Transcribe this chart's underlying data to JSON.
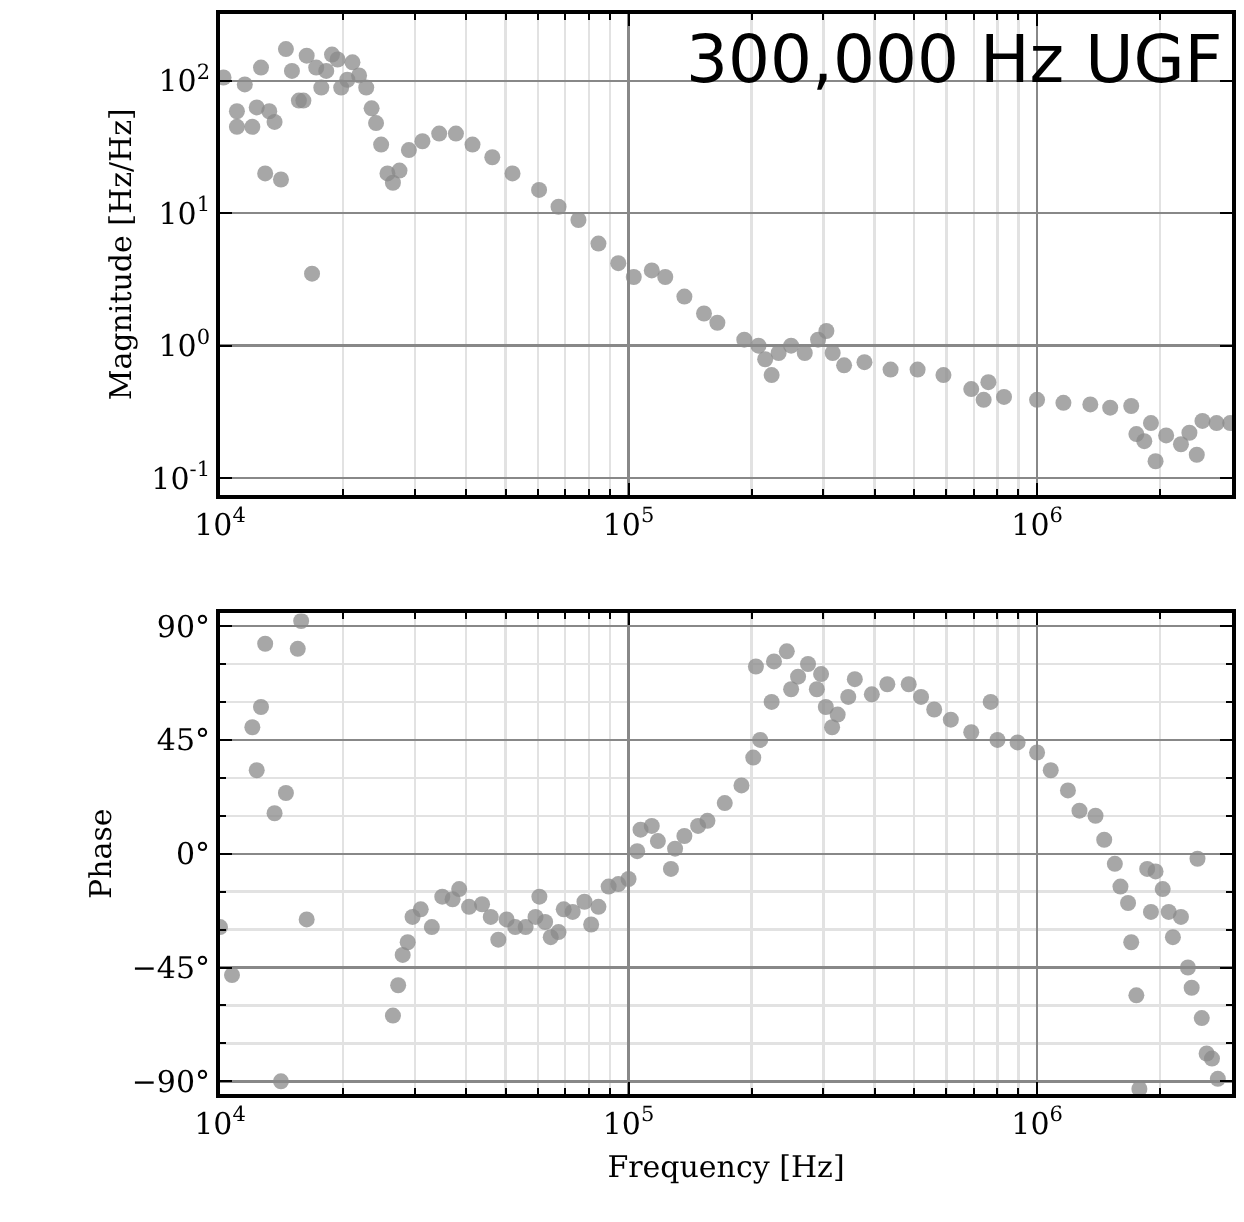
{
  "chart_data": [
    {
      "type": "scatter",
      "title": "300,000 Hz UGF",
      "ylabel": "Magnitude [Hz/Hz]",
      "log": "xy",
      "grid": true,
      "marker": "circle",
      "xlim": [
        10000,
        3000000
      ],
      "xticks": [
        {
          "value": 10000,
          "label": "10$^{4}$"
        },
        {
          "value": 100000,
          "label": "10$^{5}$"
        },
        {
          "value": 1000000,
          "label": "10$^{6}$"
        }
      ],
      "ylim": [
        0.075,
        320
      ],
      "yticks": [
        {
          "value": 0.1,
          "label": "10$^{-1}$"
        },
        {
          "value": 1,
          "label": "10$^{0}$"
        },
        {
          "value": 10,
          "label": "10$^{1}$"
        },
        {
          "value": 100,
          "label": "10$^{2}$"
        }
      ],
      "series": [
        {
          "color": "#8a8a8a",
          "x": [
            10200,
            11000,
            11000,
            11500,
            12000,
            12300,
            12600,
            12900,
            13200,
            13600,
            14100,
            14500,
            15000,
            15600,
            16000,
            16300,
            16800,
            17200,
            17700,
            18200,
            18800,
            19400,
            19800,
            20500,
            21100,
            21900,
            22800,
            23500,
            24100,
            24800,
            25700,
            26500,
            27500,
            29000,
            31300,
            34400,
            37800,
            41500,
            46400,
            52000,
            60400,
            67400,
            75400,
            84400,
            94400,
            103000,
            114000,
            123000,
            137000,
            153000,
            165000,
            192000,
            208000,
            216000,
            224000,
            233000,
            250000,
            270000,
            291000,
            305000,
            316000,
            337000,
            378000,
            438000,
            510000,
            590000,
            690000,
            740000,
            760000,
            830000,
            1000000,
            1160000,
            1350000,
            1510000,
            1700000,
            1750000,
            1830000,
            1900000,
            1950000,
            2070000,
            2250000,
            2360000,
            2460000,
            2540000,
            2750000,
            2970000
          ],
          "values": [
            106,
            59,
            45,
            94,
            45,
            63,
            126,
            20,
            59,
            49,
            18,
            174,
            119,
            71,
            71,
            155,
            3.5,
            126,
            89,
            119,
            158,
            145,
            89,
            102,
            138,
            110,
            89,
            62,
            48,
            33,
            20,
            17,
            21,
            30,
            35,
            40,
            40,
            33,
            26.5,
            20,
            15,
            11.2,
            8.9,
            5.9,
            4.2,
            3.3,
            3.7,
            3.3,
            2.35,
            1.75,
            1.49,
            1.11,
            1.0,
            0.79,
            0.6,
            0.88,
            1.0,
            0.88,
            1.11,
            1.29,
            0.88,
            0.71,
            0.75,
            0.66,
            0.66,
            0.6,
            0.47,
            0.39,
            0.53,
            0.41,
            0.39,
            0.37,
            0.36,
            0.34,
            0.35,
            0.215,
            0.19,
            0.26,
            0.134,
            0.21,
            0.18,
            0.22,
            0.15,
            0.27,
            0.26,
            0.26
          ]
        }
      ]
    },
    {
      "type": "scatter",
      "xlabel": "Frequency [Hz]",
      "ylabel": "Phase",
      "log": "x",
      "grid": true,
      "marker": "circle",
      "xlim": [
        10000,
        3000000
      ],
      "xticks": [
        {
          "value": 10000,
          "label": "10$^{4}$"
        },
        {
          "value": 100000,
          "label": "10$^{5}$"
        },
        {
          "value": 1000000,
          "label": "10$^{6}$"
        }
      ],
      "ylim": [
        -95,
        95
      ],
      "yticks": [
        {
          "value": -90,
          "label": "−90°"
        },
        {
          "value": -45,
          "label": "−45°"
        },
        {
          "value": 0,
          "label": "0°"
        },
        {
          "value": 45,
          "label": "45°"
        },
        {
          "value": 90,
          "label": "90°"
        }
      ],
      "series": [
        {
          "color": "#8a8a8a",
          "x": [
            10000,
            10700,
            12000,
            12300,
            12600,
            12900,
            13600,
            14100,
            14500,
            15500,
            15800,
            16300,
            26500,
            27300,
            28000,
            28800,
            29600,
            31000,
            33000,
            35000,
            37100,
            38500,
            40700,
            43800,
            46000,
            48000,
            50300,
            52800,
            56000,
            59200,
            60500,
            62500,
            64500,
            67400,
            69400,
            73000,
            78000,
            81000,
            84400,
            89400,
            94400,
            100000,
            105000,
            107000,
            114000,
            118000,
            127000,
            130000,
            137000,
            148000,
            156000,
            172000,
            189000,
            202000,
            205000,
            210000,
            224000,
            227000,
            244000,
            250000,
            260000,
            275000,
            289000,
            296000,
            304000,
            315000,
            325000,
            345000,
            358000,
            394000,
            430000,
            485000,
            520000,
            560000,
            615000,
            690000,
            770000,
            800000,
            896000,
            1000000,
            1080000,
            1190000,
            1270000,
            1390000,
            1460000,
            1550000,
            1600000,
            1670000,
            1700000,
            1750000,
            1780000,
            1860000,
            1900000,
            1950000,
            2030000,
            2100000,
            2150000,
            2250000,
            2340000,
            2390000,
            2470000,
            2530000,
            2600000,
            2680000,
            2770000
          ],
          "values": [
            -29,
            -48,
            50,
            33,
            58,
            83,
            16,
            -90,
            24,
            81,
            92,
            -26,
            -64,
            -52,
            -40,
            -35,
            -25,
            -22,
            -29,
            -17,
            -18,
            -14,
            -21,
            -20,
            -25,
            -34,
            -26,
            -29,
            -29,
            -25,
            -17,
            -27,
            -33,
            -31,
            -22,
            -23,
            -19,
            -28,
            -21,
            -13,
            -12,
            -10,
            1,
            9.5,
            11,
            5,
            -6,
            2,
            7,
            11,
            13,
            20,
            27,
            38,
            74,
            45,
            60,
            76,
            80,
            65,
            70,
            75,
            65,
            71,
            58,
            50,
            55,
            62,
            69,
            63,
            67,
            67,
            62,
            57,
            53,
            48,
            60,
            45,
            44,
            40,
            33,
            25,
            17,
            15,
            5.5,
            -4,
            -13,
            -19.5,
            -35,
            -56,
            -93,
            -6,
            -23,
            -7,
            -14,
            -23,
            -33,
            -25,
            -45,
            -53,
            -2,
            -65,
            -79,
            -81,
            -89
          ]
        }
      ]
    }
  ]
}
